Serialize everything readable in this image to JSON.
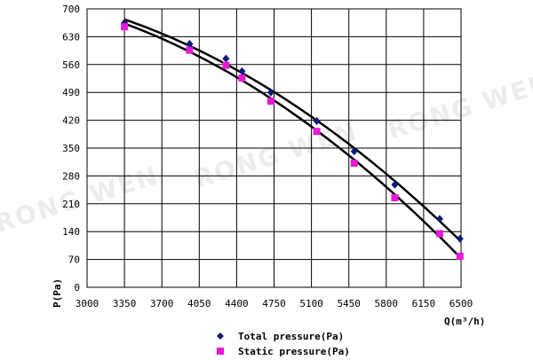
{
  "chart_data": {
    "type": "scatter",
    "xlabel": "Q(m³/h)",
    "ylabel": "P(Pa)",
    "xlim": [
      3000,
      6500
    ],
    "ylim": [
      0,
      700
    ],
    "x_ticks": [
      3000,
      3350,
      3700,
      4050,
      4400,
      4750,
      5100,
      5450,
      5800,
      6150,
      6500
    ],
    "y_ticks": [
      0,
      70,
      140,
      210,
      280,
      350,
      420,
      490,
      560,
      630,
      700
    ],
    "grid": true,
    "legend_position": "bottom",
    "watermark": "RONG WEN",
    "series": [
      {
        "name": "Total pressure(Pa)",
        "marker": "diamond",
        "color": "#0b1a7a",
        "x": [
          3350,
          3960,
          4300,
          4450,
          4720,
          5150,
          5500,
          5880,
          6300,
          6490
        ],
        "y": [
          665,
          612,
          575,
          543,
          490,
          418,
          342,
          258,
          172,
          122
        ]
      },
      {
        "name": "Static pressure(Pa)",
        "marker": "square",
        "color": "#e81ad6",
        "x": [
          3350,
          3960,
          4300,
          4450,
          4720,
          5150,
          5500,
          5880,
          6300,
          6490
        ],
        "y": [
          655,
          596,
          558,
          526,
          468,
          392,
          312,
          225,
          135,
          78
        ]
      }
    ]
  }
}
